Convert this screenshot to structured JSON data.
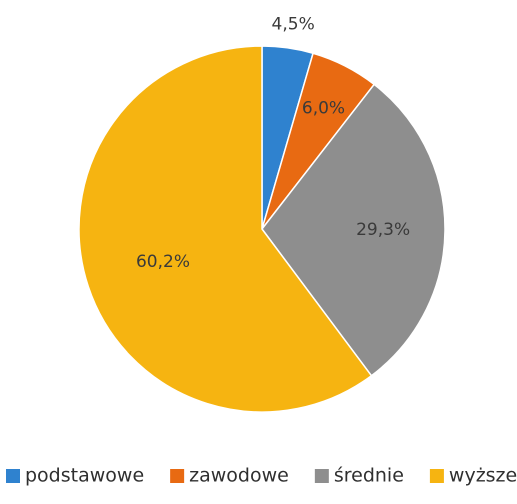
{
  "chart_data": {
    "type": "pie",
    "categories": [
      "podstawowe",
      "zawodowe",
      "średnie",
      "wyższe"
    ],
    "values": [
      4.5,
      6.0,
      29.3,
      60.2
    ],
    "labels": [
      "4,5%",
      "6,0%",
      "29,3%",
      "60,2%"
    ],
    "colors": [
      "#2f82cf",
      "#e86a12",
      "#8e8e8e",
      "#f6b411"
    ],
    "start_angle": "12 o'clock",
    "direction": "clockwise",
    "legend_position": "bottom"
  }
}
